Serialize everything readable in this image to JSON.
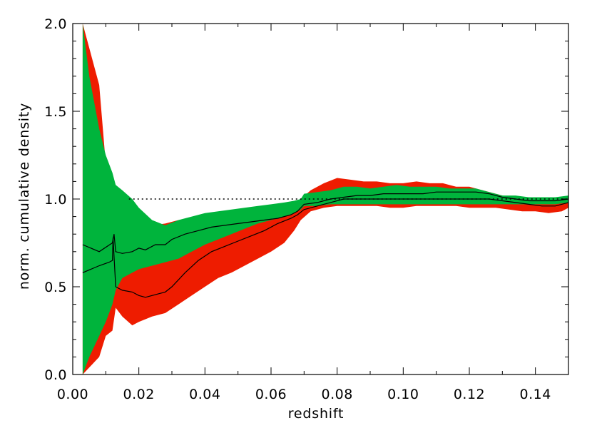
{
  "chart_data": {
    "type": "area",
    "title": "",
    "xlabel": "redshift",
    "ylabel": "norm. cumulative density",
    "xlim": [
      0.0,
      0.15
    ],
    "ylim": [
      0.0,
      2.0
    ],
    "x_ticks": [
      0.0,
      0.02,
      0.04,
      0.06,
      0.08,
      0.1,
      0.12,
      0.14
    ],
    "x_tick_labels": [
      "0.00",
      "0.02",
      "0.04",
      "0.06",
      "0.08",
      "0.10",
      "0.12",
      "0.14"
    ],
    "y_ticks": [
      0.0,
      0.5,
      1.0,
      1.5,
      2.0
    ],
    "y_tick_labels": [
      "0.0",
      "0.5",
      "1.0",
      "1.5",
      "2.0"
    ],
    "reference_line": {
      "y": 1.0,
      "style": "dotted",
      "x_from": 0.017,
      "x_to": 0.15
    },
    "grid": false,
    "legend": "none",
    "series": [
      {
        "type": "band",
        "color": "#ee1c00",
        "x": [
          0.003,
          0.008,
          0.01,
          0.012,
          0.013,
          0.015,
          0.018,
          0.02,
          0.024,
          0.028,
          0.032,
          0.036,
          0.04,
          0.044,
          0.048,
          0.052,
          0.056,
          0.06,
          0.064,
          0.067,
          0.069,
          0.072,
          0.076,
          0.08,
          0.084,
          0.088,
          0.092,
          0.096,
          0.1,
          0.104,
          0.108,
          0.112,
          0.116,
          0.12,
          0.124,
          0.128,
          0.132,
          0.136,
          0.14,
          0.144,
          0.148,
          0.15
        ],
        "upper": [
          2.0,
          1.65,
          1.2,
          1.08,
          1.03,
          0.95,
          0.89,
          0.87,
          0.85,
          0.86,
          0.88,
          0.89,
          0.9,
          0.9,
          0.9,
          0.89,
          0.88,
          0.9,
          0.93,
          0.96,
          1.0,
          1.05,
          1.09,
          1.12,
          1.11,
          1.1,
          1.1,
          1.09,
          1.09,
          1.1,
          1.09,
          1.09,
          1.07,
          1.07,
          1.05,
          1.03,
          1.01,
          1.0,
          0.99,
          1.0,
          1.01,
          1.0
        ],
        "lower": [
          0.0,
          0.1,
          0.22,
          0.25,
          0.38,
          0.33,
          0.28,
          0.3,
          0.33,
          0.35,
          0.4,
          0.45,
          0.5,
          0.55,
          0.58,
          0.62,
          0.66,
          0.7,
          0.75,
          0.82,
          0.88,
          0.93,
          0.95,
          0.96,
          0.96,
          0.96,
          0.96,
          0.95,
          0.95,
          0.96,
          0.96,
          0.96,
          0.96,
          0.95,
          0.95,
          0.95,
          0.94,
          0.93,
          0.93,
          0.92,
          0.93,
          0.95
        ]
      },
      {
        "type": "band",
        "color": "#00b43c",
        "x": [
          0.003,
          0.005,
          0.008,
          0.01,
          0.012,
          0.013,
          0.015,
          0.018,
          0.02,
          0.024,
          0.028,
          0.032,
          0.036,
          0.04,
          0.044,
          0.048,
          0.052,
          0.056,
          0.06,
          0.064,
          0.067,
          0.069,
          0.07,
          0.074,
          0.078,
          0.082,
          0.086,
          0.09,
          0.094,
          0.098,
          0.102,
          0.106,
          0.11,
          0.114,
          0.118,
          0.122,
          0.126,
          0.13,
          0.134,
          0.138,
          0.142,
          0.146,
          0.15
        ],
        "upper": [
          2.0,
          1.7,
          1.4,
          1.25,
          1.15,
          1.08,
          1.05,
          1.0,
          0.95,
          0.88,
          0.85,
          0.88,
          0.9,
          0.92,
          0.93,
          0.94,
          0.95,
          0.96,
          0.97,
          0.98,
          0.99,
          1.0,
          1.03,
          1.04,
          1.05,
          1.07,
          1.07,
          1.06,
          1.07,
          1.08,
          1.07,
          1.07,
          1.07,
          1.06,
          1.06,
          1.06,
          1.04,
          1.02,
          1.02,
          1.01,
          1.01,
          1.01,
          1.02
        ],
        "lower": [
          0.0,
          0.1,
          0.22,
          0.3,
          0.4,
          0.48,
          0.55,
          0.58,
          0.6,
          0.62,
          0.64,
          0.66,
          0.7,
          0.74,
          0.77,
          0.8,
          0.83,
          0.86,
          0.88,
          0.9,
          0.92,
          0.94,
          0.96,
          0.96,
          0.97,
          0.97,
          0.97,
          0.97,
          0.97,
          0.97,
          0.97,
          0.97,
          0.97,
          0.97,
          0.97,
          0.97,
          0.97,
          0.97,
          0.97,
          0.97,
          0.97,
          0.97,
          0.98
        ]
      },
      {
        "type": "line",
        "color": "#000000",
        "x": [
          0.003,
          0.008,
          0.012,
          0.0125,
          0.013,
          0.015,
          0.018,
          0.02,
          0.022,
          0.025,
          0.028,
          0.03,
          0.034,
          0.038,
          0.042,
          0.046,
          0.05,
          0.054,
          0.058,
          0.062,
          0.066,
          0.068,
          0.07,
          0.074,
          0.078,
          0.082,
          0.086,
          0.09,
          0.094,
          0.098,
          0.102,
          0.106,
          0.11,
          0.114,
          0.118,
          0.122,
          0.126,
          0.13,
          0.134,
          0.138,
          0.142,
          0.146,
          0.15
        ],
        "y": [
          0.74,
          0.7,
          0.75,
          0.8,
          0.7,
          0.69,
          0.7,
          0.72,
          0.71,
          0.74,
          0.74,
          0.77,
          0.8,
          0.82,
          0.84,
          0.85,
          0.86,
          0.87,
          0.88,
          0.89,
          0.91,
          0.93,
          0.97,
          0.98,
          1.0,
          1.01,
          1.02,
          1.02,
          1.03,
          1.03,
          1.03,
          1.03,
          1.04,
          1.04,
          1.04,
          1.04,
          1.03,
          1.01,
          1.0,
          0.99,
          0.99,
          0.99,
          1.0
        ]
      },
      {
        "type": "line",
        "color": "#000000",
        "x": [
          0.003,
          0.008,
          0.011,
          0.012,
          0.0122,
          0.013,
          0.015,
          0.018,
          0.02,
          0.022,
          0.024,
          0.026,
          0.028,
          0.03,
          0.034,
          0.038,
          0.042,
          0.046,
          0.05,
          0.054,
          0.058,
          0.062,
          0.066,
          0.068,
          0.07,
          0.074,
          0.078,
          0.082,
          0.086,
          0.09,
          0.094,
          0.098,
          0.102,
          0.106,
          0.11,
          0.114,
          0.118,
          0.122,
          0.126,
          0.13,
          0.134,
          0.138,
          0.142,
          0.146,
          0.15
        ],
        "y": [
          0.58,
          0.62,
          0.64,
          0.65,
          0.78,
          0.5,
          0.48,
          0.47,
          0.45,
          0.44,
          0.45,
          0.46,
          0.47,
          0.5,
          0.58,
          0.65,
          0.7,
          0.73,
          0.76,
          0.79,
          0.82,
          0.86,
          0.89,
          0.91,
          0.94,
          0.96,
          0.98,
          1.0,
          1.0,
          1.0,
          1.0,
          1.0,
          1.0,
          1.0,
          1.0,
          1.0,
          1.0,
          1.0,
          1.0,
          0.99,
          0.98,
          0.97,
          0.96,
          0.96,
          0.98
        ]
      }
    ]
  }
}
